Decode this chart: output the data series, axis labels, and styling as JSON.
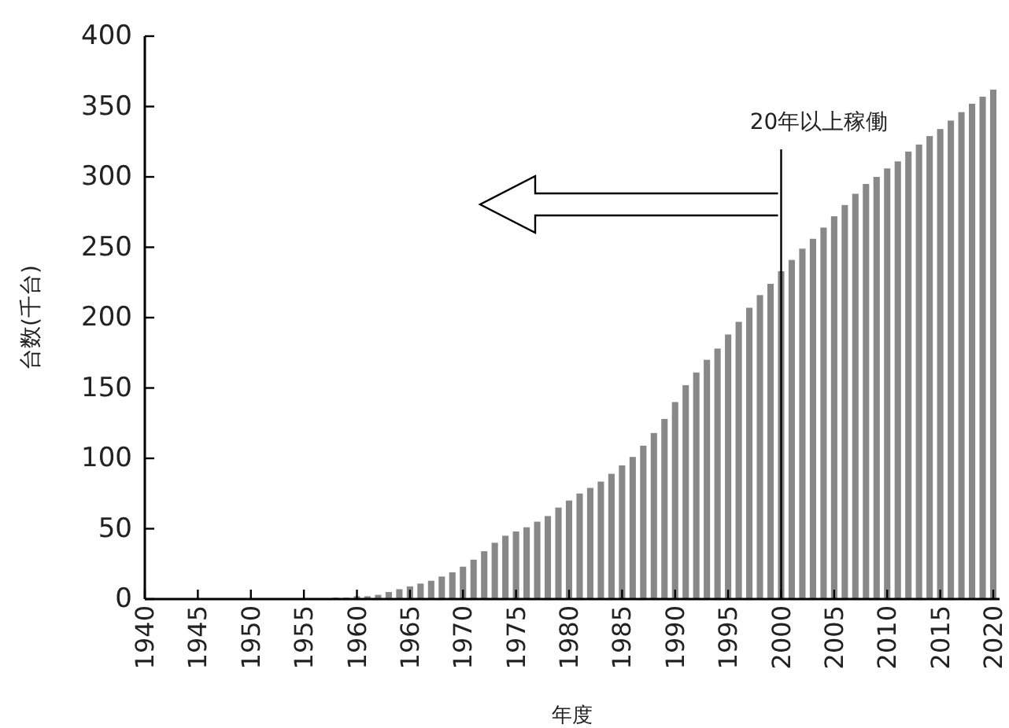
{
  "chart_data": {
    "type": "bar",
    "xlabel": "年度",
    "ylabel": "台数(千台)",
    "x": [
      1955,
      1956,
      1957,
      1958,
      1959,
      1960,
      1961,
      1962,
      1963,
      1964,
      1965,
      1966,
      1967,
      1968,
      1969,
      1970,
      1971,
      1972,
      1973,
      1974,
      1975,
      1976,
      1977,
      1978,
      1979,
      1980,
      1981,
      1982,
      1983,
      1984,
      1985,
      1986,
      1987,
      1988,
      1989,
      1990,
      1991,
      1992,
      1993,
      1994,
      1995,
      1996,
      1997,
      1998,
      1999,
      2000,
      2001,
      2002,
      2003,
      2004,
      2005,
      2006,
      2007,
      2008,
      2009,
      2010,
      2011,
      2012,
      2013,
      2014,
      2015,
      2016,
      2017,
      2018,
      2019,
      2020
    ],
    "series": [
      {
        "color": "#888888",
        "values": [
          0.5,
          0.5,
          0.5,
          1,
          1,
          2,
          2,
          3,
          5,
          7,
          9,
          11,
          13,
          16,
          19,
          23,
          28,
          34,
          40,
          45,
          48,
          51,
          55,
          59,
          65,
          70,
          75,
          79,
          83.5,
          89,
          95,
          101,
          109,
          118,
          128,
          140,
          152,
          161,
          170,
          178,
          188,
          197,
          207,
          216,
          224,
          233,
          241,
          249,
          256,
          264,
          272,
          280,
          288,
          295,
          300,
          306,
          311,
          318,
          323,
          329,
          334,
          340,
          346,
          352,
          357,
          362
        ]
      }
    ],
    "xlim": [
      1940,
      2020
    ],
    "xticks": [
      1940,
      1945,
      1950,
      1955,
      1960,
      1965,
      1970,
      1975,
      1980,
      1985,
      1990,
      1995,
      2000,
      2005,
      2010,
      2015,
      2020
    ],
    "ylim": [
      0,
      400
    ],
    "yticks": [
      0,
      50,
      100,
      150,
      200,
      250,
      300,
      350,
      400
    ],
    "ref_lines": [
      {
        "axis": "x",
        "value": 2000,
        "label": "20年以上稼働",
        "color": "#000000"
      }
    ],
    "grid": false
  }
}
